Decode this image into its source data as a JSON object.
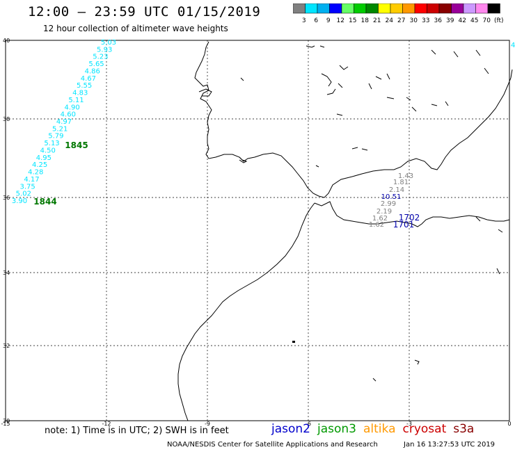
{
  "title": "12:00 – 23:59 UTC 01/15/2019",
  "subtitle": "12 hour collection of altimeter wave heights",
  "colorbar": {
    "labels": [
      "3",
      "6",
      "9",
      "12",
      "15",
      "18",
      "21",
      "24",
      "27",
      "30",
      "33",
      "36",
      "39",
      "42",
      "45",
      "70",
      "(ft)"
    ],
    "colors": [
      "#808080",
      "#00e5ff",
      "#00b0f0",
      "#0000ff",
      "#66ff66",
      "#00cc00",
      "#008800",
      "#ffff00",
      "#ffcc00",
      "#ff9900",
      "#ff0000",
      "#cc0000",
      "#880000",
      "#990099",
      "#cc99ff",
      "#ff88ee",
      "#000000"
    ]
  },
  "map": {
    "lat_labels": [
      "40",
      "38",
      "36",
      "34",
      "32",
      "30"
    ],
    "lon_labels": [
      "-15",
      "-12",
      "-9",
      "-6",
      "-3",
      "0"
    ]
  },
  "tracks": {
    "cyan_values": [
      "5.03",
      "5.93",
      "5.23",
      "5.65",
      "4.86",
      "4.67",
      "5.55",
      "4.83",
      "5.11",
      "4.90",
      "4.60",
      "4.97",
      "5.21",
      "5.79",
      "5.13",
      "4.50",
      "4.95",
      "4.25",
      "4.28",
      "4.17",
      "3.75",
      "5.02",
      "3.90"
    ],
    "cyan_color": "#00e5ff",
    "pass_labels": [
      "1845",
      "1844"
    ],
    "pass_color": "#007700",
    "gray_values": [
      "1.43",
      "1.81",
      "2.14",
      "2.99",
      "2.19",
      "1.62",
      "1.62"
    ],
    "gray_color": "#808080",
    "blue_values": [
      "10.51",
      "1702",
      "1701"
    ],
    "blue_color": "#0000aa",
    "edge_value": "4"
  },
  "note": "note:  1) Time is in UTC; 2) SWH is in feet",
  "legend": [
    {
      "label": "jason2",
      "color": "#0000cc"
    },
    {
      "label": "jason3",
      "color": "#009900"
    },
    {
      "label": "altika",
      "color": "#ff9900"
    },
    {
      "label": "cryosat",
      "color": "#cc0000"
    },
    {
      "label": "s3a",
      "color": "#880000"
    }
  ],
  "credit": "NOAA/NESDIS Center for Satellite Applications and Research",
  "timestamp": "Jan 16 13:27:53 UTC 2019"
}
